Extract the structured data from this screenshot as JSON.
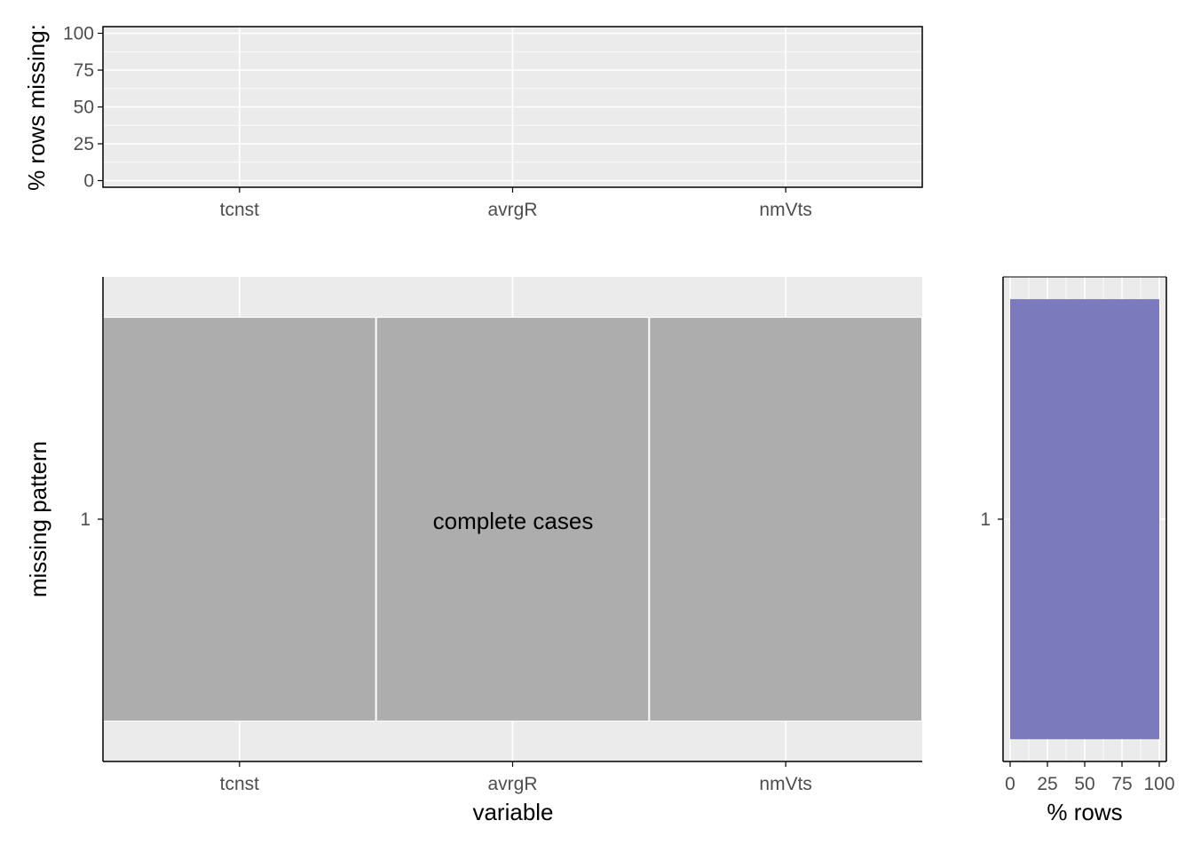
{
  "colors": {
    "panel_bg": "#EBEBEB",
    "grid": "#FFFFFF",
    "tile": "#AAAAAA",
    "bar": "#7676BB",
    "axis": "#000000",
    "tick_text": "#4D4D4D"
  },
  "chart_data": [
    {
      "type": "bar",
      "panel": "top",
      "categories": [
        "tcnst",
        "avrgR",
        "nmVts"
      ],
      "values": [
        0,
        0,
        0
      ],
      "ylabel": "% rows missing:",
      "ylim": [
        0,
        100
      ],
      "yticks": [
        "0",
        "25",
        "50",
        "75",
        "100"
      ],
      "grid": true
    },
    {
      "type": "heatmap",
      "panel": "main",
      "x": [
        "tcnst",
        "avrgR",
        "nmVts"
      ],
      "y": [
        "1"
      ],
      "cells": [
        {
          "pattern": "1",
          "variable": "tcnst",
          "missing": false
        },
        {
          "pattern": "1",
          "variable": "avrgR",
          "missing": false
        },
        {
          "pattern": "1",
          "variable": "nmVts",
          "missing": false
        }
      ],
      "annotation": "complete cases",
      "xlabel": "variable",
      "ylabel": "missing pattern",
      "grid": true
    },
    {
      "type": "bar",
      "panel": "right",
      "orientation": "horizontal",
      "categories": [
        "1"
      ],
      "values": [
        100
      ],
      "xlabel": "% rows",
      "xlim": [
        0,
        100
      ],
      "xticks": [
        "0",
        "25",
        "50",
        "75",
        "100"
      ],
      "grid": true
    }
  ]
}
